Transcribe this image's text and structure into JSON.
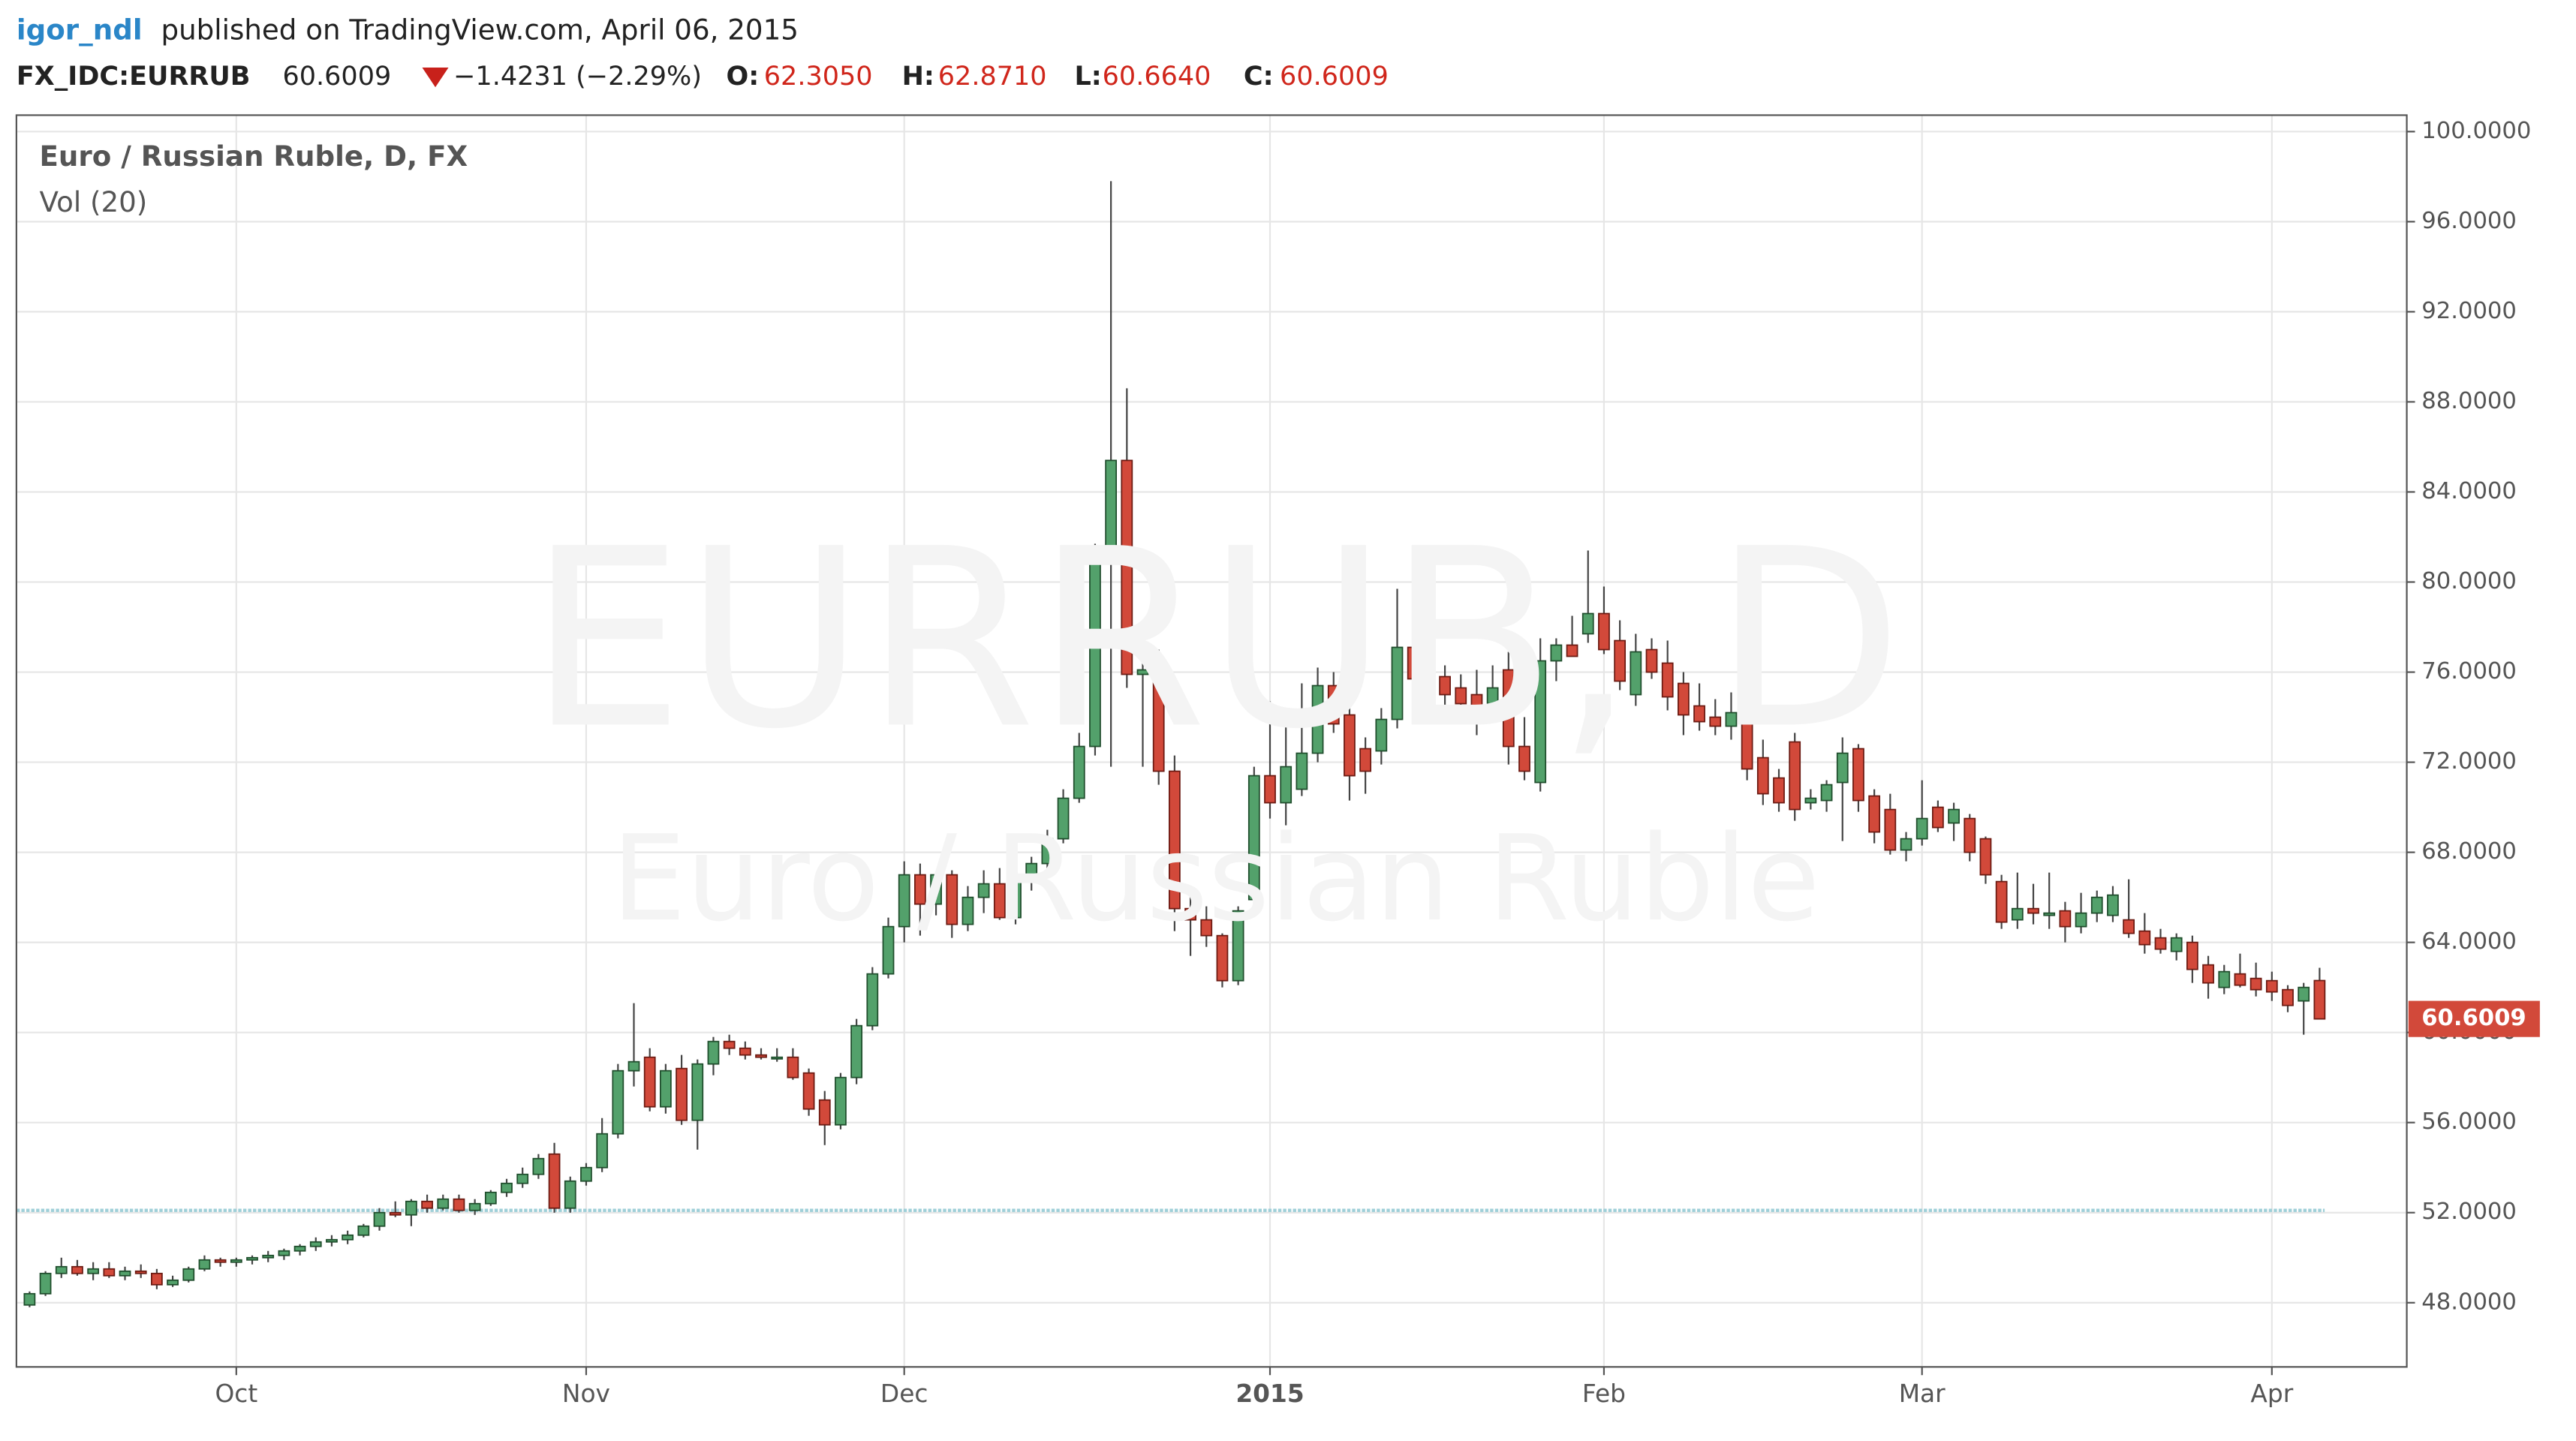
{
  "header": {
    "user": "igor_ndl",
    "published": "published on TradingView.com, April 06, 2015",
    "symbol": "FX_IDC:EURRUB",
    "last": "60.6009",
    "change": "−1.4231 (−2.29%)",
    "o_label": "O:",
    "o": "62.3050",
    "h_label": "H:",
    "h": "62.8710",
    "l_label": "L:",
    "l": "60.6640",
    "c_label": "C:",
    "c": "60.6009"
  },
  "chart_data": {
    "type": "candlestick",
    "title": "Euro / Russian Ruble, D, FX",
    "subtitle": "Vol (20)",
    "watermark": "EURRUB, D",
    "watermark_sub": "Euro / Russian Ruble",
    "up_color": "#53a16b",
    "down_color": "#d2493a",
    "grid": true,
    "horizontal_line": 52.1,
    "horizontal_line_color": "#9fcfd8",
    "last_label": "60.6009",
    "ylim": [
      45.15,
      100.73
    ],
    "yticks": [
      {
        "value": 48,
        "label": "48.0000"
      },
      {
        "value": 52,
        "label": "52.0000"
      },
      {
        "value": 56,
        "label": "56.0000"
      },
      {
        "value": 60,
        "label": "60.0000"
      },
      {
        "value": 64,
        "label": "64.0000"
      },
      {
        "value": 68,
        "label": "68.0000"
      },
      {
        "value": 72,
        "label": "72.0000"
      },
      {
        "value": 76,
        "label": "76.0000"
      },
      {
        "value": 80,
        "label": "80.0000"
      },
      {
        "value": 84,
        "label": "84.0000"
      },
      {
        "value": 88,
        "label": "88.0000"
      },
      {
        "value": 92,
        "label": "92.0000"
      },
      {
        "value": 96,
        "label": "96.0000"
      },
      {
        "value": 100,
        "label": "100.0000"
      }
    ],
    "categories": [
      null,
      null,
      null,
      null,
      null,
      null,
      null,
      null,
      null,
      null,
      null,
      null,
      null,
      "Oct",
      null,
      null,
      null,
      null,
      null,
      null,
      null,
      null,
      null,
      null,
      null,
      null,
      null,
      null,
      null,
      null,
      null,
      null,
      null,
      null,
      null,
      "Nov",
      null,
      null,
      null,
      null,
      null,
      null,
      null,
      null,
      null,
      null,
      null,
      null,
      null,
      null,
      null,
      null,
      null,
      null,
      null,
      "Dec",
      null,
      null,
      null,
      null,
      null,
      null,
      null,
      null,
      null,
      null,
      null,
      null,
      null,
      null,
      null,
      null,
      null,
      null,
      null,
      null,
      null,
      null,
      "2015",
      null,
      null,
      null,
      null,
      null,
      null,
      null,
      null,
      null,
      null,
      null,
      null,
      null,
      null,
      null,
      null,
      null,
      null,
      null,
      null,
      "Feb",
      null,
      null,
      null,
      null,
      null,
      null,
      null,
      null,
      null,
      null,
      null,
      null,
      null,
      null,
      null,
      null,
      null,
      null,
      null,
      "Mar",
      null,
      null,
      null,
      null,
      null,
      null,
      null,
      null,
      null,
      null,
      null,
      null,
      null,
      null,
      null,
      null,
      null,
      null,
      null,
      null,
      null,
      "Apr",
      null,
      null,
      null
    ],
    "ohlc": [
      [
        47.9,
        48.5,
        47.8,
        48.4
      ],
      [
        48.4,
        49.4,
        48.3,
        49.3
      ],
      [
        49.3,
        50.0,
        49.1,
        49.6
      ],
      [
        49.6,
        49.9,
        49.2,
        49.3
      ],
      [
        49.3,
        49.8,
        49.0,
        49.5
      ],
      [
        49.5,
        49.8,
        49.1,
        49.2
      ],
      [
        49.2,
        49.6,
        49.0,
        49.4
      ],
      [
        49.4,
        49.7,
        49.1,
        49.3
      ],
      [
        49.3,
        49.5,
        48.6,
        48.8
      ],
      [
        48.8,
        49.2,
        48.7,
        49.0
      ],
      [
        49.0,
        49.6,
        48.9,
        49.5
      ],
      [
        49.5,
        50.1,
        49.4,
        49.9
      ],
      [
        49.9,
        50.0,
        49.6,
        49.8
      ],
      [
        49.8,
        50.0,
        49.6,
        49.9
      ],
      [
        49.9,
        50.1,
        49.7,
        50.0
      ],
      [
        50.0,
        50.3,
        49.8,
        50.1
      ],
      [
        50.1,
        50.4,
        49.9,
        50.3
      ],
      [
        50.3,
        50.6,
        50.1,
        50.5
      ],
      [
        50.5,
        50.9,
        50.3,
        50.7
      ],
      [
        50.7,
        51.0,
        50.5,
        50.8
      ],
      [
        50.8,
        51.2,
        50.6,
        51.0
      ],
      [
        51.0,
        51.5,
        50.9,
        51.4
      ],
      [
        51.4,
        52.2,
        51.2,
        52.0
      ],
      [
        52.0,
        52.5,
        51.8,
        51.9
      ],
      [
        51.9,
        52.6,
        51.4,
        52.5
      ],
      [
        52.5,
        52.8,
        52.0,
        52.2
      ],
      [
        52.2,
        52.8,
        52.1,
        52.6
      ],
      [
        52.6,
        52.8,
        52.0,
        52.1
      ],
      [
        52.1,
        52.6,
        51.9,
        52.4
      ],
      [
        52.4,
        53.0,
        52.3,
        52.9
      ],
      [
        52.9,
        53.5,
        52.7,
        53.3
      ],
      [
        53.3,
        54.0,
        53.1,
        53.7
      ],
      [
        53.7,
        54.6,
        53.5,
        54.4
      ],
      [
        54.6,
        55.1,
        52.0,
        52.2
      ],
      [
        52.2,
        53.6,
        52.0,
        53.4
      ],
      [
        53.4,
        54.2,
        53.2,
        54.0
      ],
      [
        54.0,
        56.2,
        53.8,
        55.5
      ],
      [
        55.5,
        58.6,
        55.3,
        58.3
      ],
      [
        58.3,
        61.3,
        57.6,
        58.7
      ],
      [
        58.9,
        59.3,
        56.5,
        56.7
      ],
      [
        56.7,
        58.6,
        56.4,
        58.3
      ],
      [
        58.4,
        59.0,
        55.9,
        56.1
      ],
      [
        56.1,
        58.8,
        54.8,
        58.6
      ],
      [
        58.6,
        59.8,
        58.1,
        59.6
      ],
      [
        59.6,
        59.9,
        59.0,
        59.3
      ],
      [
        59.3,
        59.6,
        58.8,
        59.0
      ],
      [
        59.0,
        59.3,
        58.8,
        58.9
      ],
      [
        58.9,
        59.3,
        58.7,
        58.9
      ],
      [
        58.9,
        59.3,
        57.9,
        58.0
      ],
      [
        58.2,
        58.4,
        56.3,
        56.6
      ],
      [
        57.0,
        57.4,
        55.0,
        55.9
      ],
      [
        55.9,
        58.2,
        55.7,
        58.0
      ],
      [
        58.0,
        60.6,
        57.7,
        60.3
      ],
      [
        60.3,
        62.9,
        60.1,
        62.6
      ],
      [
        62.6,
        65.1,
        62.4,
        64.7
      ],
      [
        64.7,
        67.6,
        64.0,
        67.0
      ],
      [
        67.0,
        67.5,
        64.3,
        65.7
      ],
      [
        65.7,
        67.1,
        65.2,
        67.0
      ],
      [
        67.0,
        67.2,
        64.2,
        64.8
      ],
      [
        64.8,
        66.5,
        64.5,
        66.0
      ],
      [
        66.0,
        67.2,
        65.3,
        66.6
      ],
      [
        66.6,
        67.3,
        65.0,
        65.1
      ],
      [
        65.1,
        67.1,
        64.8,
        66.9
      ],
      [
        66.9,
        67.8,
        66.3,
        67.5
      ],
      [
        67.5,
        69.0,
        67.2,
        68.6
      ],
      [
        68.6,
        70.8,
        68.4,
        70.4
      ],
      [
        70.4,
        73.3,
        70.2,
        72.7
      ],
      [
        72.7,
        81.7,
        72.3,
        81.2
      ],
      [
        81.2,
        97.8,
        71.8,
        85.4
      ],
      [
        85.4,
        88.6,
        75.3,
        75.9
      ],
      [
        75.9,
        77.5,
        71.8,
        76.1
      ],
      [
        76.1,
        77.0,
        71.0,
        71.6
      ],
      [
        71.6,
        72.3,
        64.5,
        65.5
      ],
      [
        65.5,
        66.4,
        63.4,
        65.0
      ],
      [
        65.0,
        65.6,
        63.8,
        64.3
      ],
      [
        64.3,
        64.4,
        62.0,
        62.3
      ],
      [
        62.3,
        65.6,
        62.1,
        65.4
      ],
      [
        65.9,
        71.8,
        65.6,
        71.4
      ],
      [
        71.4,
        74.7,
        69.5,
        70.2
      ],
      [
        70.2,
        73.8,
        69.2,
        71.8
      ],
      [
        70.8,
        75.5,
        70.5,
        72.4
      ],
      [
        72.4,
        76.2,
        72.0,
        75.4
      ],
      [
        75.4,
        76.0,
        73.3,
        73.7
      ],
      [
        74.1,
        74.6,
        70.3,
        71.4
      ],
      [
        72.6,
        73.1,
        70.6,
        71.6
      ],
      [
        72.5,
        74.4,
        71.9,
        73.9
      ],
      [
        73.9,
        79.7,
        73.5,
        77.1
      ],
      [
        77.1,
        79.1,
        75.3,
        75.7
      ],
      [
        75.5,
        76.2,
        74.6,
        75.9
      ],
      [
        75.8,
        76.3,
        74.5,
        75.0
      ],
      [
        75.3,
        75.9,
        73.9,
        74.6
      ],
      [
        75.0,
        76.1,
        73.2,
        74.4
      ],
      [
        74.6,
        76.3,
        74.3,
        75.3
      ],
      [
        76.1,
        76.9,
        71.9,
        72.7
      ],
      [
        72.7,
        74.0,
        71.2,
        71.6
      ],
      [
        71.1,
        77.5,
        70.7,
        76.5
      ],
      [
        76.5,
        77.5,
        75.6,
        77.2
      ],
      [
        77.2,
        78.5,
        76.7,
        76.7
      ],
      [
        77.7,
        81.4,
        77.3,
        78.6
      ],
      [
        78.6,
        79.8,
        76.8,
        77.0
      ],
      [
        77.4,
        78.3,
        75.2,
        75.6
      ],
      [
        75.0,
        77.7,
        74.5,
        76.9
      ],
      [
        77.0,
        77.5,
        75.7,
        76.0
      ],
      [
        76.4,
        77.4,
        74.3,
        74.9
      ],
      [
        75.5,
        76.0,
        73.2,
        74.1
      ],
      [
        74.5,
        75.5,
        73.4,
        73.8
      ],
      [
        74.0,
        74.8,
        73.2,
        73.6
      ],
      [
        73.6,
        75.1,
        73.0,
        74.2
      ],
      [
        74.8,
        76.5,
        71.2,
        71.7
      ],
      [
        72.2,
        73.0,
        70.1,
        70.6
      ],
      [
        71.3,
        71.7,
        69.8,
        70.2
      ],
      [
        72.9,
        73.3,
        69.4,
        69.9
      ],
      [
        70.2,
        70.8,
        69.9,
        70.4
      ],
      [
        70.3,
        71.2,
        69.8,
        71.0
      ],
      [
        71.1,
        73.1,
        68.5,
        72.4
      ],
      [
        72.6,
        72.8,
        69.8,
        70.3
      ],
      [
        70.5,
        70.8,
        68.4,
        68.9
      ],
      [
        69.9,
        70.6,
        67.9,
        68.1
      ],
      [
        68.1,
        68.9,
        67.6,
        68.6
      ],
      [
        68.6,
        71.2,
        68.3,
        69.5
      ],
      [
        70.0,
        70.3,
        68.9,
        69.1
      ],
      [
        69.3,
        70.2,
        68.5,
        69.9
      ],
      [
        69.5,
        69.7,
        67.6,
        68.0
      ],
      [
        68.6,
        68.7,
        66.6,
        67.0
      ],
      [
        66.7,
        67.0,
        64.6,
        64.9
      ],
      [
        65.0,
        67.1,
        64.6,
        65.5
      ],
      [
        65.5,
        66.6,
        64.8,
        65.3
      ],
      [
        65.2,
        67.1,
        64.6,
        65.3
      ],
      [
        65.4,
        65.8,
        64.0,
        64.7
      ],
      [
        64.7,
        66.2,
        64.4,
        65.3
      ],
      [
        65.3,
        66.3,
        64.9,
        66.0
      ],
      [
        65.2,
        66.5,
        64.9,
        66.1
      ],
      [
        65.0,
        66.8,
        64.2,
        64.4
      ],
      [
        64.5,
        65.3,
        63.5,
        63.9
      ],
      [
        64.2,
        64.6,
        63.5,
        63.7
      ],
      [
        63.6,
        64.4,
        63.2,
        64.2
      ],
      [
        64.0,
        64.3,
        62.2,
        62.8
      ],
      [
        63.0,
        63.4,
        61.5,
        62.2
      ],
      [
        62.0,
        63.0,
        61.7,
        62.7
      ],
      [
        62.6,
        63.5,
        62.0,
        62.1
      ],
      [
        62.4,
        63.1,
        61.6,
        61.9
      ],
      [
        62.3,
        62.7,
        61.4,
        61.8
      ],
      [
        61.9,
        62.1,
        60.9,
        61.2
      ],
      [
        61.4,
        62.2,
        59.9,
        62.0
      ],
      [
        62.305,
        62.871,
        60.664,
        60.6009
      ]
    ]
  }
}
